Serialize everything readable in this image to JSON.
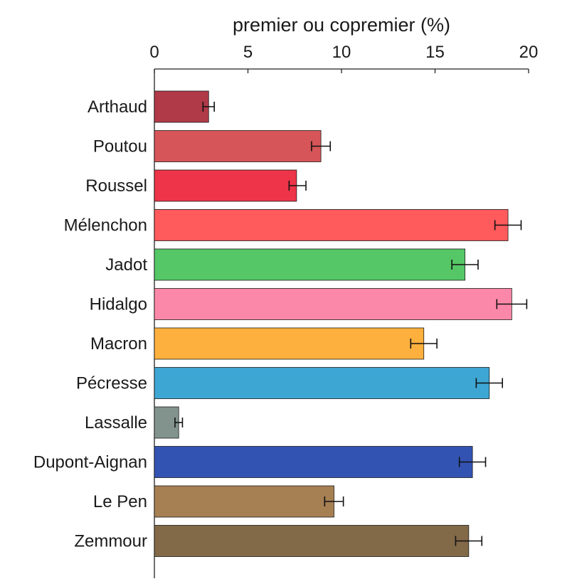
{
  "chart_data": {
    "type": "bar",
    "orientation": "horizontal",
    "title": "premier ou copremier (%)",
    "xlabel": "premier ou copremier (%)",
    "ylabel": "",
    "xlim": [
      0,
      20
    ],
    "x_ticks": [
      0,
      5,
      10,
      15,
      20
    ],
    "x_tick_labels": [
      "0",
      "5",
      "10",
      "15",
      "20"
    ],
    "x_axis_position": "top",
    "grid": false,
    "legend": "none",
    "categories": [
      "Arthaud",
      "Poutou",
      "Roussel",
      "Mélenchon",
      "Jadot",
      "Hidalgo",
      "Macron",
      "Pécresse",
      "Lassalle",
      "Dupont-Aignan",
      "Le Pen",
      "Zemmour"
    ],
    "values": [
      2.9,
      8.9,
      7.6,
      18.9,
      16.6,
      19.1,
      14.4,
      17.9,
      1.3,
      17.0,
      9.6,
      16.8
    ],
    "error_low": [
      2.6,
      8.4,
      7.2,
      18.2,
      15.9,
      18.3,
      13.7,
      17.2,
      1.1,
      16.3,
      9.1,
      16.1
    ],
    "error_high": [
      3.2,
      9.4,
      8.1,
      19.6,
      17.3,
      19.9,
      15.1,
      18.6,
      1.5,
      17.7,
      10.1,
      17.5
    ],
    "colors": [
      "#b03a48",
      "#d65558",
      "#ee3448",
      "#ff5a5c",
      "#55c766",
      "#fb88a8",
      "#fdb03e",
      "#3ea6d3",
      "#82938e",
      "#3353b3",
      "#a67f53",
      "#826947"
    ]
  }
}
